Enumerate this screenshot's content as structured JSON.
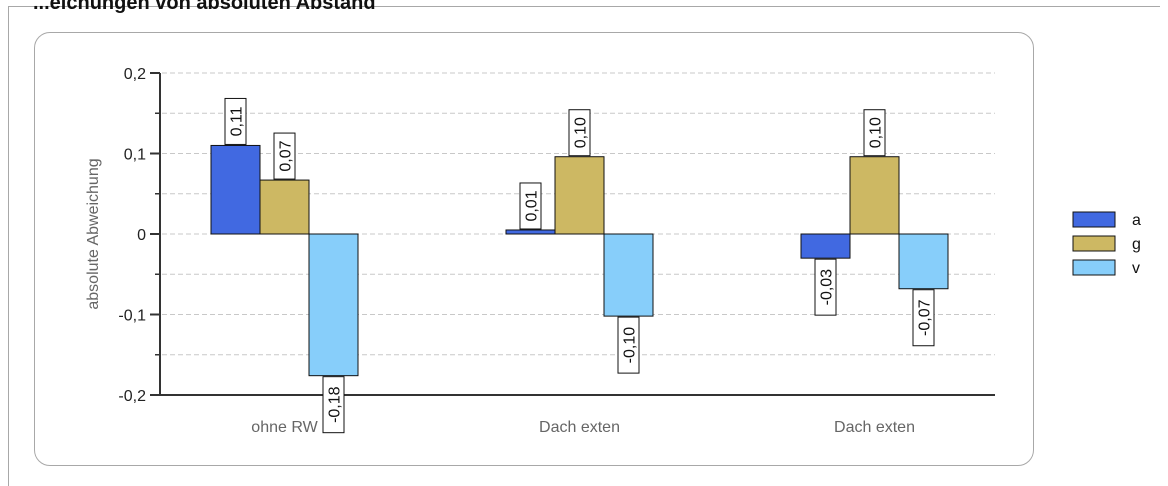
{
  "page": {
    "title": "...eichungen von absoluten Abstand"
  },
  "chart_data": {
    "type": "bar",
    "title": "",
    "xlabel": "",
    "ylabel": "absolute Abweichung",
    "ylim": [
      -0.2,
      0.2
    ],
    "yticks": [
      0.2,
      0.1,
      0,
      -0.1,
      -0.2
    ],
    "ytick_labels": [
      "0,2",
      "0,1",
      "0",
      "-0,1",
      "-0,2"
    ],
    "categories": [
      "ohne RW",
      "Dach exten",
      "Dach exten"
    ],
    "grid": "horizontal dashed",
    "legend_position": "right",
    "series": [
      {
        "name": "a",
        "color": "#4169e1",
        "values": [
          0.11,
          0.005,
          -0.03
        ],
        "labels": [
          "0,11",
          "0,01",
          "-0,03"
        ]
      },
      {
        "name": "g",
        "color": "#cdb863",
        "values": [
          0.067,
          0.096,
          0.096
        ],
        "labels": [
          "0,07",
          "0,10",
          "0,10"
        ]
      },
      {
        "name": "v",
        "color": "#87cefa",
        "values": [
          -0.176,
          -0.102,
          -0.068
        ],
        "labels": [
          "-0,18",
          "-0,10",
          "-0,07"
        ]
      }
    ]
  }
}
